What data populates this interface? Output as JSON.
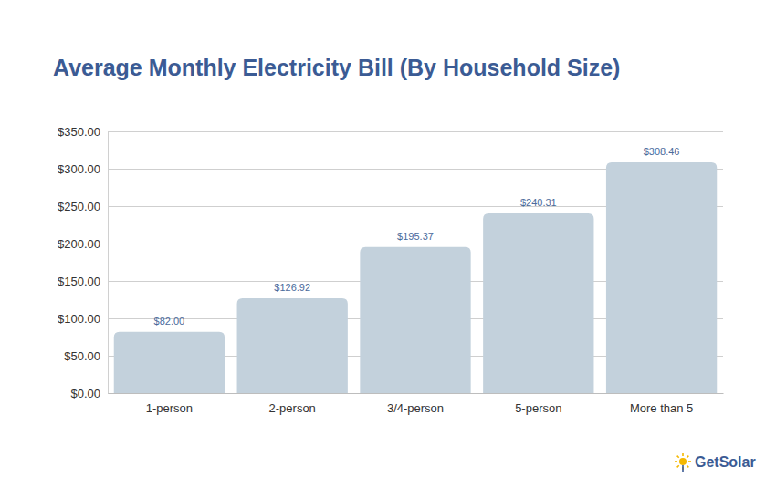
{
  "chart_data": {
    "type": "bar",
    "title": "Average Monthly Electricity Bill (By Household Size)",
    "categories": [
      "1-person",
      "2-person",
      "3/4-person",
      "5-person",
      "More than 5"
    ],
    "values": [
      82.0,
      126.92,
      195.37,
      240.31,
      308.46
    ],
    "value_labels": [
      "$82.00",
      "$126.92",
      "$195.37",
      "$240.31",
      "$308.46"
    ],
    "color": "#c3d1dc",
    "ylim": [
      0,
      350
    ],
    "yticks": [
      {
        "value": 0,
        "label": "$0.00"
      },
      {
        "value": 50,
        "label": "$50.00"
      },
      {
        "value": 100,
        "label": "$100.00"
      },
      {
        "value": 150,
        "label": "$150.00"
      },
      {
        "value": 200,
        "label": "$200.00"
      },
      {
        "value": 250,
        "label": "$250.00"
      },
      {
        "value": 300,
        "label": "$300.00"
      },
      {
        "value": 350,
        "label": "$350.00"
      }
    ],
    "grid": true,
    "data_labels": true,
    "annotations": [
      "GetSolar"
    ]
  }
}
